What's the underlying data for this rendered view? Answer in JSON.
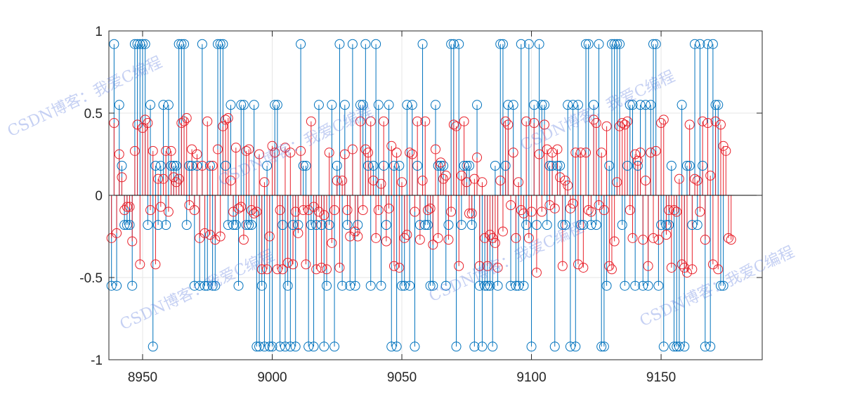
{
  "colors": {
    "series1": "#0072bd",
    "series2": "#e8202a",
    "grid": "#e6e6e6",
    "axis": "#262626",
    "baseline": "#000000"
  },
  "watermarks": [
    "CSDN博客：我爱C编程",
    "CSDN博客：我爱C编程",
    "CSDN博客：我爱C编程",
    "CSDN博客：我爱C编程",
    "CSDN博客：我爱C编程",
    "CSDN博客：我爱C编程"
  ],
  "chart_data": {
    "type": "stem",
    "title": "",
    "xlabel": "",
    "ylabel": "",
    "xlim": [
      8937,
      9189
    ],
    "ylim": [
      -1,
      1
    ],
    "grid": true,
    "xticks": [
      8950,
      9000,
      9050,
      9100,
      9150
    ],
    "xtick_labels": [
      "8950",
      "9000",
      "9050",
      "9100",
      "9150"
    ],
    "yticks": [
      -1,
      -0.5,
      0,
      0.5,
      1
    ],
    "ytick_labels": [
      "-1",
      "-0.5",
      "0",
      "0.5",
      "1"
    ],
    "x_start": 8938,
    "series": [
      {
        "values": [
          -0.55,
          0.92,
          -0.55,
          0.55,
          0.18,
          -0.18,
          -0.18,
          -0.18,
          -0.55,
          0.92,
          0.92,
          0.92,
          0.92,
          0.92,
          -0.18,
          0.55,
          -0.92,
          0.18,
          -0.18,
          0.18,
          0.55,
          -0.18,
          0.55,
          0.18,
          0.18,
          0.18,
          0.92,
          0.92,
          0.92,
          -0.18,
          0.18,
          0.18,
          -0.55,
          0.18,
          -0.55,
          0.92,
          -0.55,
          -0.55,
          0.18,
          -0.55,
          -0.55,
          0.92,
          0.92,
          0.92,
          0.18,
          -0.18,
          0.55,
          -0.18,
          -0.18,
          -0.55,
          0.55,
          0.55,
          -0.18,
          -0.18,
          -0.18,
          0.55,
          -0.92,
          -0.92,
          -0.55,
          -0.92,
          0.18,
          -0.92,
          -0.92,
          0.55,
          0.55,
          -0.92,
          -0.18,
          -0.92,
          -0.55,
          -0.92,
          -0.18,
          -0.92,
          -0.18,
          0.92,
          0.18,
          0.18,
          -0.92,
          -0.18,
          -0.92,
          -0.18,
          0.55,
          -0.18,
          -0.92,
          -0.55,
          -0.18,
          0.55,
          -0.92,
          0.18,
          0.92,
          -0.55,
          0.55,
          -0.18,
          -0.55,
          0.92,
          -0.55,
          -0.18,
          0.55,
          0.55,
          0.92,
          0.18,
          -0.55,
          0.18,
          0.92,
          0.55,
          -0.55,
          0.18,
          -0.18,
          0.55,
          -0.92,
          0.18,
          -0.92,
          0.18,
          -0.55,
          -0.55,
          0.55,
          -0.55,
          0.55,
          -0.92,
          0.18,
          -0.18,
          0.92,
          -0.18,
          -0.18,
          -0.55,
          -0.55,
          0.55,
          0.18,
          0.18,
          0.18,
          -0.55,
          -0.18,
          0.92,
          0.92,
          -0.92,
          0.92,
          -0.18,
          0.18,
          0.18,
          0.18,
          -0.18,
          -0.92,
          0.55,
          -0.55,
          -0.92,
          -0.55,
          -0.55,
          -0.55,
          -0.92,
          0.18,
          -0.55,
          0.92,
          0.92,
          0.18,
          0.55,
          -0.55,
          0.55,
          -0.55,
          -0.55,
          0.92,
          -0.55,
          -0.18,
          0.92,
          -0.92,
          0.55,
          -0.18,
          0.92,
          0.55,
          0.55,
          -0.18,
          0.18,
          0.18,
          -0.92,
          0.18,
          0.18,
          -0.18,
          -0.18,
          0.55,
          -0.92,
          0.55,
          -0.92,
          0.55,
          -0.18,
          -0.18,
          0.92,
          0.92,
          -0.18,
          0.55,
          -0.18,
          0.92,
          -0.92,
          -0.92,
          -0.55,
          0.18,
          0.92,
          0.92,
          0.92,
          0.92,
          -0.18,
          -0.55,
          0.18,
          0.55,
          0.55,
          -0.55,
          0.18,
          0.55,
          -0.55,
          0.55,
          -0.55,
          0.55,
          0.92,
          0.92,
          -0.55,
          -0.18,
          -0.92,
          -0.18,
          -0.18,
          0.18,
          -0.92,
          -0.92,
          -0.92,
          0.55,
          -0.92,
          0.18,
          0.18,
          -0.18,
          0.92,
          -0.18,
          0.92,
          0.18,
          -0.92,
          0.92,
          -0.92,
          0.92,
          0.55,
          0.55,
          -0.55,
          -0.55
        ],
        "color": "#0072bd"
      },
      {
        "values": [
          -0.26,
          0.44,
          -0.23,
          0.25,
          0.11,
          -0.09,
          -0.07,
          -0.07,
          -0.28,
          0.27,
          0.43,
          -0.42,
          0.41,
          0.46,
          0.44,
          -0.09,
          0.27,
          -0.42,
          0.1,
          -0.07,
          0.1,
          0.27,
          -0.1,
          0.27,
          0.11,
          0.08,
          0.1,
          0.44,
          0.45,
          0.47,
          -0.06,
          0.28,
          -0.09,
          0.25,
          -0.26,
          0.18,
          -0.23,
          0.45,
          -0.24,
          0.18,
          -0.27,
          0.28,
          -0.25,
          0.42,
          0.46,
          0.47,
          0.09,
          -0.1,
          0.29,
          -0.08,
          -0.07,
          -0.27,
          0.27,
          0.28,
          -0.09,
          -0.11,
          -0.1,
          0.25,
          -0.45,
          0.08,
          -0.45,
          -0.25,
          0.3,
          0.26,
          -0.45,
          -0.09,
          -0.45,
          0.29,
          -0.41,
          0.26,
          -0.42,
          -0.1,
          -0.23,
          0.27,
          -0.09,
          -0.42,
          -0.09,
          0.45,
          -0.07,
          -0.45,
          -0.1,
          -0.44,
          -0.12,
          -0.45,
          0.26,
          -0.29,
          -0.09,
          0.09,
          -0.44,
          0.09,
          0.25,
          -0.09,
          -0.25,
          0.28,
          -0.22,
          -0.25,
          0.45,
          -0.09,
          0.28,
          0.26,
          0.45,
          0.09,
          -0.26,
          -0.09,
          0.07,
          0.45,
          -0.28,
          -0.08,
          0.3,
          -0.43,
          0.26,
          -0.44,
          0.08,
          -0.26,
          -0.24,
          0.26,
          0.25,
          -0.1,
          0.45,
          -0.27,
          0.09,
          0.45,
          -0.09,
          -0.08,
          -0.3,
          0.28,
          -0.26,
          0.2,
          0.1,
          0.12,
          -0.27,
          -0.1,
          0.43,
          0.42,
          -0.43,
          0.12,
          0.45,
          0.08,
          -0.11,
          -0.11,
          0.1,
          0.23,
          -0.43,
          0.08,
          -0.26,
          -0.43,
          -0.24,
          -0.26,
          -0.29,
          -0.44,
          0.09,
          -0.22,
          0.45,
          0.43,
          -0.06,
          0.26,
          -0.26,
          0.08,
          -0.09,
          -0.11,
          0.45,
          -0.26,
          -0.1,
          0.44,
          -0.47,
          0.25,
          -0.1,
          0.43,
          0.28,
          -0.06,
          0.26,
          -0.08,
          0.28,
          0.11,
          -0.43,
          0.09,
          0.06,
          -0.08,
          -0.05,
          0.26,
          -0.42,
          0.26,
          -0.44,
          0.26,
          -0.09,
          -0.1,
          0.46,
          0.44,
          -0.06,
          0.26,
          -0.09,
          0.42,
          -0.43,
          -0.45,
          -0.28,
          0.08,
          0.42,
          0.44,
          0.43,
          0.45,
          -0.09,
          -0.26,
          0.25,
          0.21,
          0.26,
          -0.27,
          0.09,
          -0.43,
          0.26,
          -0.26,
          0.27,
          -0.27,
          0.44,
          0.46,
          -0.24,
          -0.09,
          -0.44,
          -0.09,
          -0.1,
          0.1,
          -0.42,
          -0.44,
          -0.47,
          0.43,
          -0.45,
          0.1,
          0.09,
          -0.1,
          0.45,
          -0.27,
          0.44,
          0.12,
          -0.42,
          0.45,
          -0.45,
          0.43,
          0.3,
          0.27,
          -0.26,
          -0.27
        ],
        "color": "#e8202a"
      }
    ]
  }
}
